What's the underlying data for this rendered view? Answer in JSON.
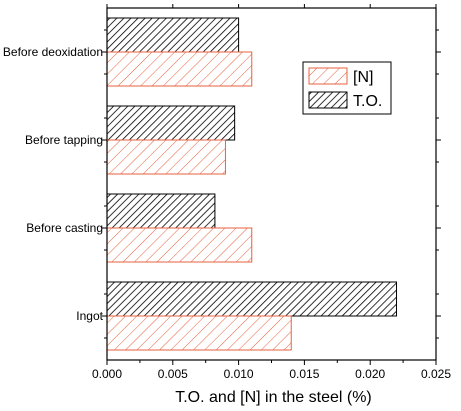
{
  "chart_data": {
    "type": "bar",
    "orientation": "horizontal",
    "categories": [
      "Before deoxidation",
      "Before tapping",
      "Before casting",
      "Ingot"
    ],
    "series": [
      {
        "name": "T.O.",
        "values": [
          0.01,
          0.0097,
          0.0082,
          0.022
        ],
        "color": "#000000",
        "hatch": "dense-diagonal"
      },
      {
        "name": "[N]",
        "values": [
          0.011,
          0.009,
          0.011,
          0.014
        ],
        "color": "#e8603c",
        "hatch": "wide-diagonal"
      }
    ],
    "xlabel": "T.O. and [N] in the steel (%)",
    "xlim": [
      0.0,
      0.025
    ],
    "xticks": [
      "0.000",
      "0.005",
      "0.010",
      "0.015",
      "0.020",
      "0.025"
    ],
    "legend": {
      "placement": "top-right",
      "entries": [
        "[N]",
        "T.O."
      ]
    },
    "grid": false
  }
}
